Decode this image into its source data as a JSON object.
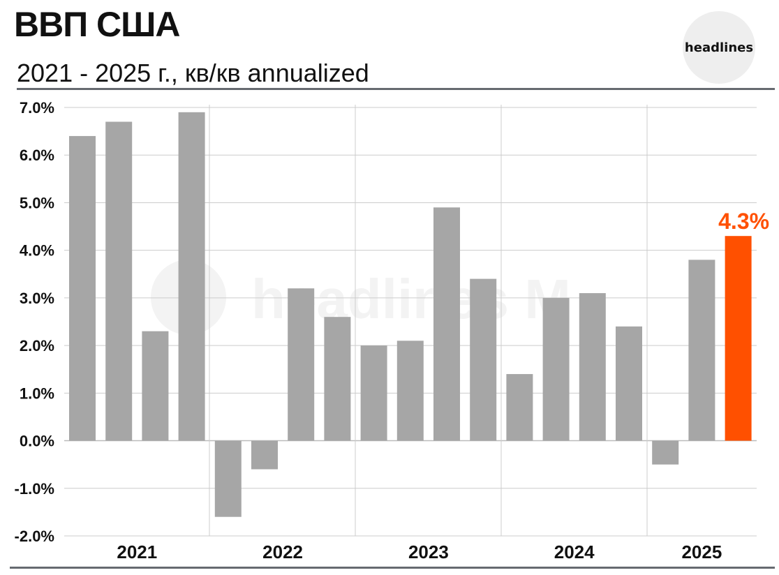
{
  "header": {
    "title": "ВВП США",
    "subtitle": "2021 - 2025 г., кв/кв annualized",
    "logo_text": "headlines"
  },
  "watermark_text": "headlines M",
  "colors": {
    "bar": "#a6a6a6",
    "highlight": "#ff5000",
    "grid": "#cccccc",
    "rule": "#666a70"
  },
  "chart_data": {
    "type": "bar",
    "title": "ВВП США",
    "subtitle": "2021 - 2025 г., кв/кв annualized",
    "ylim": [
      -2.0,
      7.0
    ],
    "y_ticks": [
      7.0,
      6.0,
      5.0,
      4.0,
      3.0,
      2.0,
      1.0,
      0.0,
      -1.0,
      -2.0
    ],
    "y_tick_labels": [
      "7.0%",
      "6.0%",
      "5.0%",
      "4.0%",
      "3.0%",
      "2.0%",
      "1.0%",
      "0.0%",
      "-1.0%",
      "-2.0%"
    ],
    "grid": true,
    "groups": [
      "2021",
      "2022",
      "2023",
      "2024",
      "2025"
    ],
    "group_sizes": [
      4,
      4,
      4,
      4,
      3
    ],
    "values": [
      6.4,
      6.7,
      2.3,
      6.9,
      -1.6,
      -0.6,
      3.2,
      2.6,
      2.0,
      2.1,
      4.9,
      3.4,
      1.4,
      3.0,
      3.1,
      2.4,
      -0.5,
      3.8,
      4.3
    ],
    "highlight_index": 18,
    "annotation": "4.3%"
  }
}
